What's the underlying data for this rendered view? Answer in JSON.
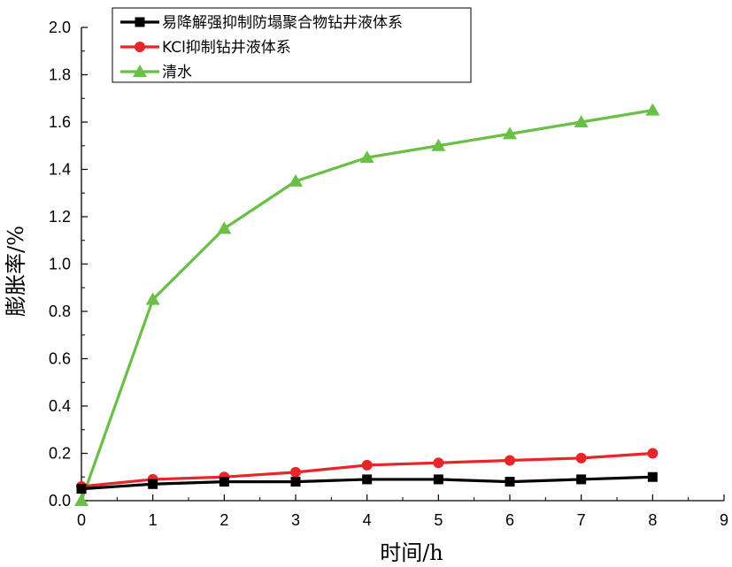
{
  "chart_data": {
    "type": "line",
    "xlabel": "时间/h",
    "ylabel": "膨胀率/%",
    "xlim": [
      0,
      9
    ],
    "ylim": [
      0.0,
      2.0
    ],
    "x_ticks": [
      "0",
      "1",
      "2",
      "3",
      "4",
      "5",
      "6",
      "7",
      "8",
      "9"
    ],
    "y_ticks": [
      "0.0",
      "0.2",
      "0.4",
      "0.6",
      "0.8",
      "1.0",
      "1.2",
      "1.4",
      "1.6",
      "1.8",
      "2.0"
    ],
    "grid": false,
    "legend_position": "top-left",
    "x": [
      0,
      1,
      2,
      3,
      4,
      5,
      6,
      7,
      8
    ],
    "series": [
      {
        "name": "易降解强抑制防塌聚合物钻井液体系",
        "color": "#000000",
        "marker": "square",
        "values": [
          0.05,
          0.07,
          0.08,
          0.08,
          0.09,
          0.09,
          0.08,
          0.09,
          0.1
        ]
      },
      {
        "name": "KCl抑制钻井液体系",
        "color": "#e8262a",
        "marker": "circle",
        "values": [
          0.06,
          0.09,
          0.1,
          0.12,
          0.15,
          0.16,
          0.17,
          0.18,
          0.2
        ]
      },
      {
        "name": "清水",
        "color": "#6abf45",
        "marker": "triangle",
        "values": [
          0.0,
          0.85,
          1.15,
          1.35,
          1.45,
          1.5,
          1.55,
          1.6,
          1.65
        ]
      }
    ]
  }
}
